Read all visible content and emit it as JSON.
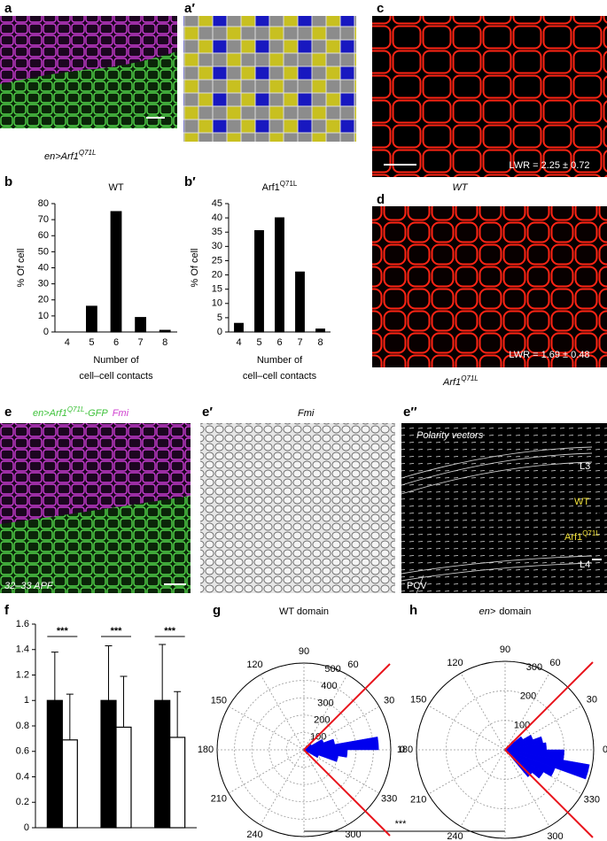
{
  "images": [
    {
      "label": "a",
      "caption": "en>Arf1",
      "caption_sup": "Q71L"
    },
    {
      "label": "a′"
    },
    {
      "label": "c",
      "annotation": "LWR = 2.25 ± 0.72",
      "caption": "WT"
    },
    {
      "label": "d",
      "annotation": "LWR = 1.69 ± 0.48",
      "caption": "Arf1",
      "caption_sup": "Q71L"
    },
    {
      "label": "e",
      "caption": "en>Arf1",
      "caption_sup": "Q71L",
      "caption_suffix": "-GFP",
      "stain": "Fmi",
      "annotation": "32–33 APF"
    },
    {
      "label": "e′",
      "caption": "Fmi"
    },
    {
      "label": "e″",
      "caption": "Polarity vectors",
      "annotations": [
        "L3",
        "WT",
        "L4",
        "PCV"
      ],
      "domain_label": "Arf1",
      "domain_label_sup": "Q71L"
    }
  ],
  "comparison": "***",
  "chart_data": [
    {
      "type": "bar",
      "label": "b",
      "title": "WT",
      "ylabel": "% Of cell",
      "xlabel": [
        "Number of",
        "cell–cell contacts"
      ],
      "categories": [
        "4",
        "5",
        "6",
        "7",
        "8"
      ],
      "values": [
        0,
        16,
        75,
        9,
        1
      ],
      "color": "#000000",
      "ylim": [
        0,
        80
      ],
      "yticks": [
        0,
        10,
        20,
        30,
        40,
        50,
        60,
        70,
        80
      ]
    },
    {
      "type": "bar",
      "label": "b′",
      "title": "Arf1",
      "title_sup": "Q71L",
      "ylabel": "% Of cell",
      "xlabel": [
        "Number of",
        "cell–cell contacts"
      ],
      "categories": [
        "4",
        "5",
        "6",
        "7",
        "8"
      ],
      "values": [
        3,
        35.5,
        40,
        21,
        1
      ],
      "color": "#000000",
      "ylim": [
        0,
        45
      ],
      "yticks": [
        0,
        5,
        10,
        15,
        20,
        25,
        30,
        35,
        40,
        45
      ]
    },
    {
      "type": "bar",
      "label": "f",
      "categories": [
        null,
        null,
        null
      ],
      "series": [
        {
          "color": "#000000",
          "values": [
            1,
            1,
            1
          ],
          "errors": [
            0.38,
            0.43,
            0.44
          ]
        },
        {
          "color": "#ffffff",
          "values": [
            0.69,
            0.79,
            0.71
          ],
          "errors": [
            0.36,
            0.4,
            0.36
          ]
        }
      ],
      "annotations": [
        "***",
        "***",
        "***"
      ],
      "ylim": [
        0,
        1.6
      ],
      "yticks": [
        0,
        0.2,
        0.4,
        0.6,
        0.8,
        1,
        1.2,
        1.4,
        1.6
      ]
    },
    {
      "type": "polar_bar",
      "label": "g",
      "title": "WT domain",
      "angles": [
        -35,
        -25,
        -15,
        -5,
        5,
        15,
        25,
        35
      ],
      "values": [
        30,
        90,
        200,
        250,
        430,
        180,
        120,
        50
      ],
      "bin_width": 10,
      "color": "#0000ee",
      "rlim": [
        0,
        500
      ],
      "rticks": [
        100,
        200,
        300,
        400,
        500
      ],
      "thetaticks": [
        0,
        30,
        60,
        90,
        120,
        150,
        180,
        210,
        240,
        270,
        300,
        330
      ],
      "reference_angles": [
        45,
        315
      ],
      "reference_color": "#e8141c"
    },
    {
      "type": "polar_bar",
      "label": "h",
      "title_prefix": "en>",
      "title": "domain",
      "angles": [
        -45,
        -35,
        -25,
        -15,
        -5,
        5,
        15,
        25,
        35,
        45
      ],
      "values": [
        120,
        150,
        180,
        290,
        200,
        140,
        130,
        100,
        70,
        40
      ],
      "bin_width": 10,
      "color": "#0000ee",
      "rlim": [
        0,
        300
      ],
      "rticks": [
        100,
        200,
        300
      ],
      "thetaticks": [
        0,
        30,
        60,
        90,
        120,
        150,
        180,
        210,
        240,
        270,
        300,
        330
      ],
      "reference_angles": [
        45,
        315
      ],
      "reference_color": "#e8141c"
    }
  ]
}
